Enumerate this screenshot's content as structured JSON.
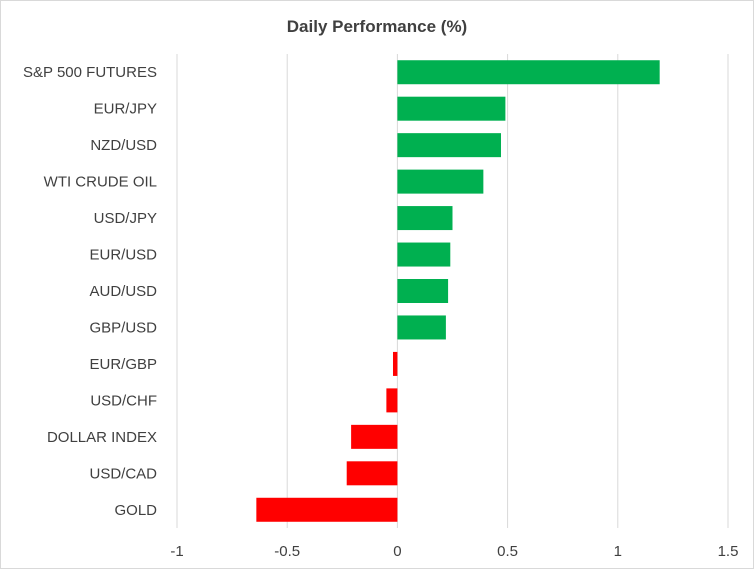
{
  "chart_data": {
    "type": "bar",
    "orientation": "horizontal",
    "title": "Daily Performance (%)",
    "xlabel": "",
    "ylabel": "",
    "categories": [
      "S&P 500 FUTURES",
      "EUR/JPY",
      "NZD/USD",
      "WTI CRUDE OIL",
      "USD/JPY",
      "EUR/USD",
      "AUD/USD",
      "GBP/USD",
      "EUR/GBP",
      "USD/CHF",
      "DOLLAR INDEX",
      "USD/CAD",
      "GOLD"
    ],
    "values": [
      1.19,
      0.49,
      0.47,
      0.39,
      0.25,
      0.24,
      0.23,
      0.22,
      -0.02,
      -0.05,
      -0.21,
      -0.23,
      -0.64
    ],
    "xlim": [
      -1,
      1.5
    ],
    "xticks": [
      -1,
      -0.5,
      0,
      0.5,
      1,
      1.5
    ],
    "xtick_labels": [
      "-1",
      "-0.5",
      "0",
      "0.5",
      "1",
      "1.5"
    ],
    "grid": "vertical",
    "legend": "none",
    "colors": {
      "positive": "#00b050",
      "negative": "#ff0000",
      "grid": "#d9d9d9"
    }
  }
}
